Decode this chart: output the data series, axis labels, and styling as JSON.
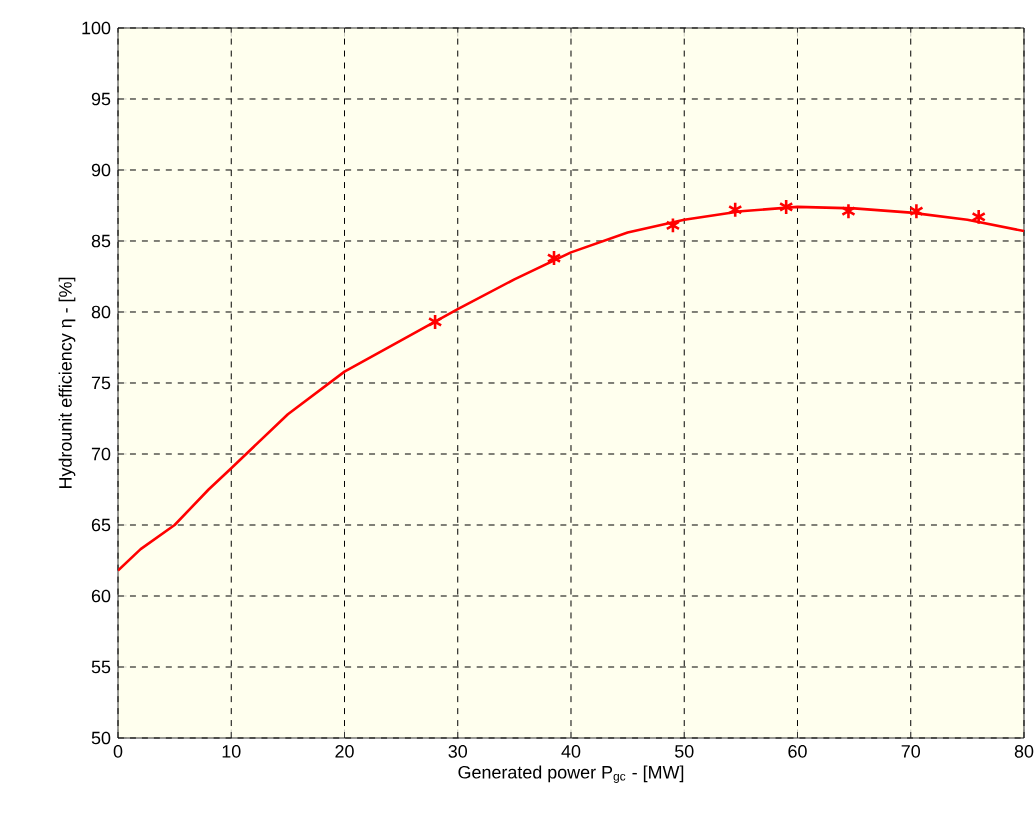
{
  "chart_data": {
    "type": "line",
    "xlabel": "Generated power P$_{gc}$ - [MW]",
    "ylabel": "Hydrounit efficiency η - [%]",
    "xlim": [
      0,
      80
    ],
    "ylim": [
      50,
      100
    ],
    "xticks": [
      0,
      10,
      20,
      30,
      40,
      50,
      60,
      70,
      80
    ],
    "yticks": [
      50,
      55,
      60,
      65,
      70,
      75,
      80,
      85,
      90,
      95,
      100
    ],
    "grid": true,
    "series": [
      {
        "color": "#ff0000",
        "marker": "none",
        "x": [
          0,
          2,
          5,
          8,
          10,
          15,
          20,
          25,
          30,
          35,
          40,
          45,
          50,
          55,
          60,
          65,
          70,
          75,
          80
        ],
        "values": [
          61.8,
          63.3,
          65,
          67.5,
          69,
          72.8,
          75.8,
          78,
          80.2,
          82.3,
          84.2,
          85.6,
          86.5,
          87.1,
          87.4,
          87.3,
          87,
          86.5,
          85.7
        ]
      },
      {
        "type": "scatter",
        "color": "#ff0000",
        "marker": "cross",
        "x": [
          28,
          38.5,
          49,
          54.5,
          59,
          64.5,
          70.5,
          76
        ],
        "values": [
          79.3,
          83.8,
          86.1,
          87.2,
          87.4,
          87.1,
          87.1,
          86.7
        ]
      }
    ]
  }
}
